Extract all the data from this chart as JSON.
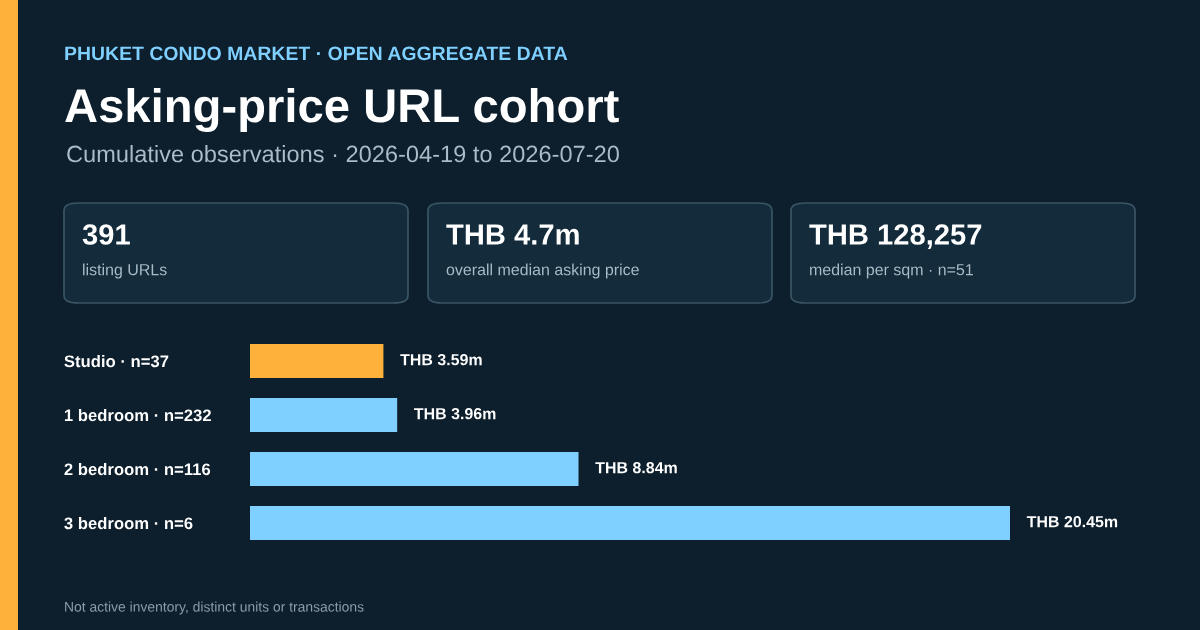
{
  "chart_data": [
    {
      "type": "other",
      "annotations": [
        "391",
        "listing URLs",
        "THB 4.7m",
        "overall median asking price",
        "THB 128,257",
        "median per sqm · n=51"
      ]
    },
    {
      "type": "bar",
      "orientation": "horizontal",
      "title": "Asking-price URL cohort",
      "subtitle": "Cumulative observations · 2026-04-19 to 2026-07-20",
      "annotations": [
        "PHUKET CONDO MARKET · OPEN AGGREGATE DATA",
        "Not active inventory, distinct units or transactions"
      ],
      "categories": [
        "Studio · n=37",
        "1 bedroom · n=232",
        "2 bedroom · n=116",
        "3 bedroom · n=6"
      ],
      "values": [
        3590000,
        3960000,
        8840000,
        20450000
      ],
      "colors": [
        "#ffb23b",
        "#7fcfff",
        "#7fcfff",
        "#7fcfff"
      ],
      "value_labels": [
        "THB 3.59m",
        "THB 3.96m",
        "THB 8.84m",
        "THB 20.45m"
      ],
      "grid": false,
      "legend": false
    }
  ]
}
